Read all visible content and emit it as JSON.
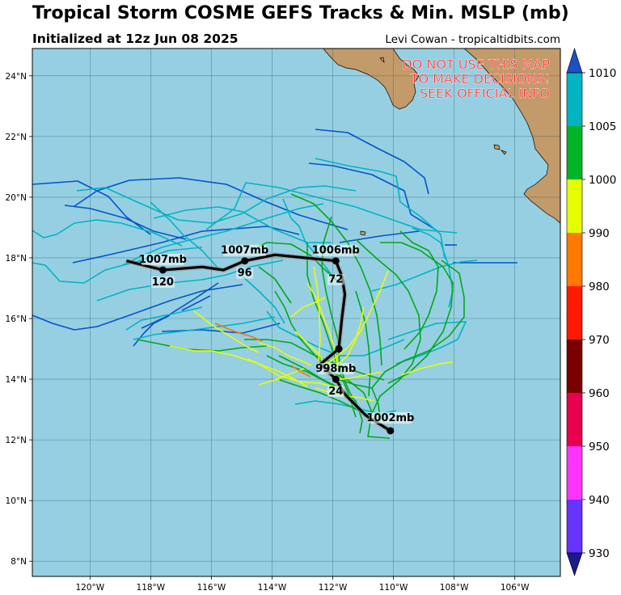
{
  "title": "Tropical Storm COSME GEFS Tracks & Min. MSLP (mb)",
  "subtitle": "Initialized at 12z Jun 08 2025",
  "credit": "Levi Cowan - tropicaltidbits.com",
  "warning": [
    "DO NOT USE THIS MAP",
    "TO MAKE DECISIONS!",
    "SEEK OFFICIAL INFO"
  ],
  "colors": {
    "ocean": "#96cfe2",
    "land": "#c39a69",
    "track_cyan": "#00b4c3",
    "track_blue": "#0055c8",
    "track_green": "#00a81a",
    "track_yellow": "#e6ff00",
    "track_orange": "#f07800",
    "mean_track": "#000000"
  },
  "map": {
    "lon_labels": [
      "120°W",
      "118°W",
      "116°W",
      "114°W",
      "112°W",
      "110°W",
      "108°W",
      "106°W"
    ],
    "lat_labels": [
      "8°N",
      "10°N",
      "12°N",
      "14°N",
      "16°N",
      "18°N",
      "20°N",
      "22°N",
      "24°N"
    ],
    "lon_range": [
      -121.9,
      -104.5
    ],
    "lat_range": [
      7.5,
      24.9
    ]
  },
  "colorbar": {
    "ticks": [
      "930",
      "940",
      "950",
      "960",
      "970",
      "980",
      "990",
      "1000",
      "1005",
      "1010"
    ],
    "bins": [
      {
        "from": 930,
        "to": 940,
        "color": "#6633ff"
      },
      {
        "from": 940,
        "to": 950,
        "color": "#ff33ff"
      },
      {
        "from": 950,
        "to": 960,
        "color": "#e6004d"
      },
      {
        "from": 960,
        "to": 970,
        "color": "#7a0000"
      },
      {
        "from": 970,
        "to": 980,
        "color": "#ff1a00"
      },
      {
        "from": 980,
        "to": 990,
        "color": "#ff7800"
      },
      {
        "from": 990,
        "to": 1000,
        "color": "#e6ff00"
      },
      {
        "from": 1000,
        "to": 1005,
        "color": "#00b428"
      },
      {
        "from": 1005,
        "to": 1010,
        "color": "#00b4c3"
      }
    ],
    "under_color": "#1a1a8c",
    "over_color": "#1a50c8"
  },
  "mean_track_points": [
    {
      "lon": -110.1,
      "lat": 12.3,
      "pressure": "1002mb",
      "hour": ""
    },
    {
      "lon": -111.9,
      "lat": 14.0,
      "pressure": "998mb",
      "hour": "24"
    },
    {
      "lon": -111.8,
      "lat": 15.0,
      "pressure": "",
      "hour": ""
    },
    {
      "lon": -111.9,
      "lat": 17.9,
      "pressure": "1006mb",
      "hour": "72"
    },
    {
      "lon": -114.9,
      "lat": 17.9,
      "pressure": "1007mb",
      "hour": "96"
    },
    {
      "lon": -117.6,
      "lat": 17.6,
      "pressure": "1007mb",
      "hour": "120"
    }
  ]
}
